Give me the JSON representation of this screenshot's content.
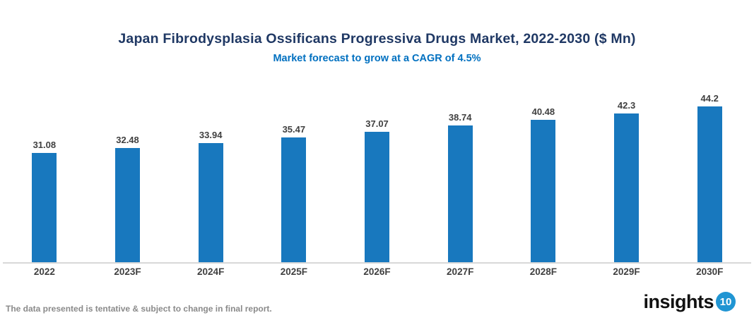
{
  "chart_data": {
    "type": "bar",
    "title": "Japan Fibrodysplasia Ossificans Progressiva Drugs Market, 2022-2030 ($ Mn)",
    "subtitle": "Market forecast to grow at a CAGR of 4.5%",
    "categories": [
      "2022",
      "2023F",
      "2024F",
      "2025F",
      "2026F",
      "2027F",
      "2028F",
      "2029F",
      "2030F"
    ],
    "values": [
      31.08,
      32.48,
      33.94,
      35.47,
      37.07,
      38.74,
      40.48,
      42.3,
      44.2
    ],
    "value_labels": [
      "31.08",
      "32.48",
      "33.94",
      "35.47",
      "37.07",
      "38.74",
      "40.48",
      "42.3",
      "44.2"
    ],
    "xlabel": "",
    "ylabel": "",
    "ylim": [
      0,
      47
    ],
    "grid": false,
    "legend": "none",
    "value_labels_position": "above-bars"
  },
  "footer": {
    "disclaimer": "The data presented is tentative & subject to change in final report.",
    "logo_text": "insights",
    "logo_badge": "10"
  },
  "colors": {
    "title": "#1F3864",
    "subtitle": "#0070C0",
    "bar": "#1878BE",
    "label": "#404040",
    "axis_line": "#D8D8D8",
    "footer_text": "#8A8A8A",
    "logo_badge_bg": "#2095D3"
  }
}
